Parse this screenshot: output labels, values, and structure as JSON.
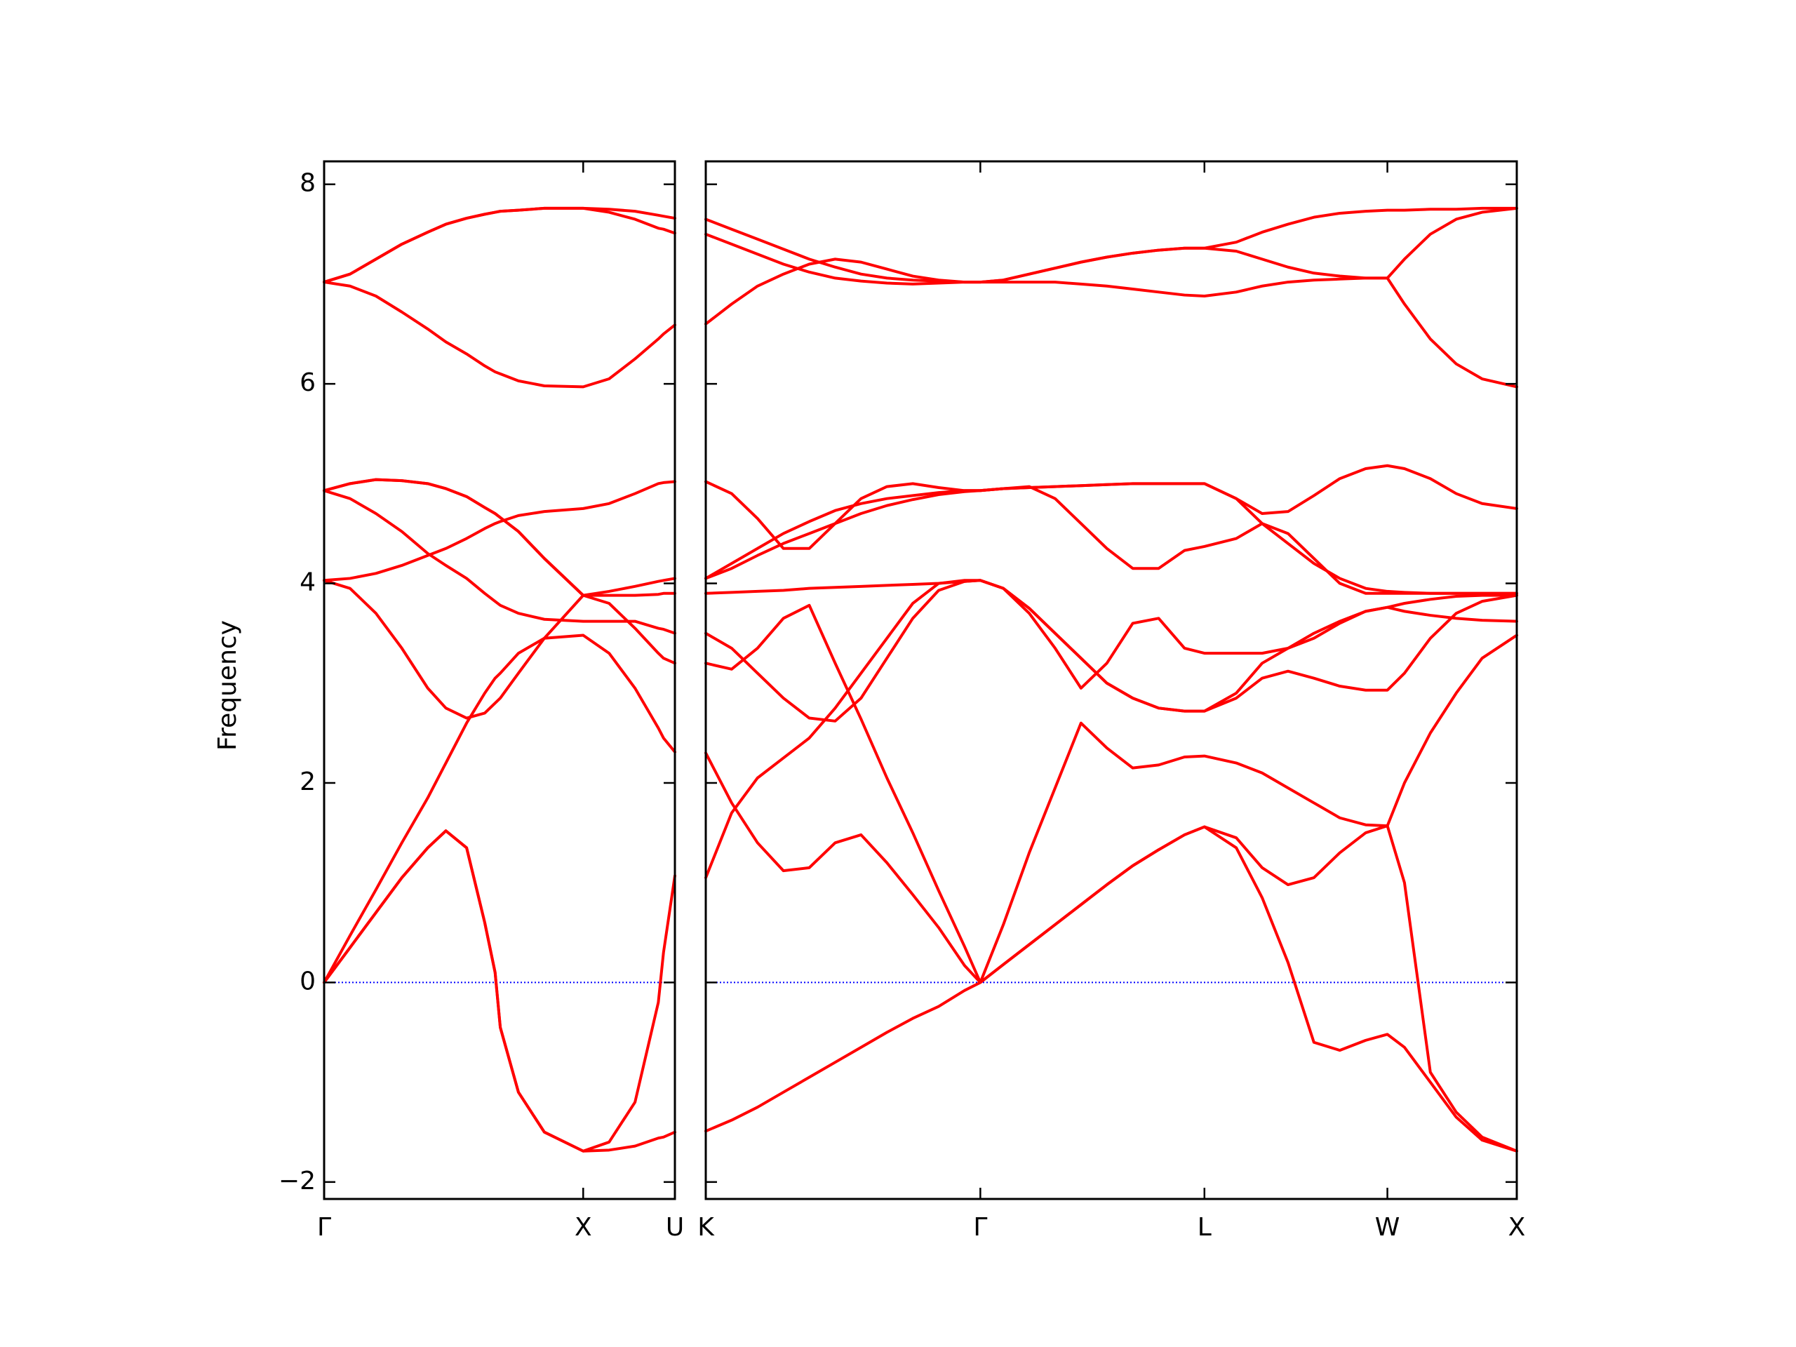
{
  "chart_data": [
    {
      "type": "line",
      "ylabel": "Frequency",
      "x": [
        0,
        0.1,
        0.2,
        0.3,
        0.4,
        0.47,
        0.55,
        0.62,
        0.66,
        0.68,
        0.75,
        0.85,
        1.0,
        1.1,
        1.2,
        1.29,
        1.31,
        1.354
      ],
      "xlim": [
        0,
        1.354
      ],
      "xticks": [
        {
          "value": 0,
          "label": "Γ"
        },
        {
          "value": 1.0,
          "label": "X"
        },
        {
          "value": 1.354,
          "label": "U"
        }
      ],
      "ylim": [
        -2.17,
        8.23
      ],
      "yticks": [
        {
          "value": -2,
          "label": "−2"
        },
        0,
        2,
        4,
        6,
        8
      ],
      "color": "#ff0000",
      "zero_line": {
        "value": 0,
        "color": "#0000ff"
      },
      "series": [
        {
          "values": [
            0,
            0.35,
            0.7,
            1.05,
            1.35,
            1.52,
            1.35,
            0.6,
            0.1,
            -0.45,
            -1.1,
            -1.5,
            -1.69,
            -1.68,
            -1.64,
            -1.56,
            -1.55,
            -1.5
          ]
        },
        {
          "values": [
            0,
            0.35,
            0.7,
            1.05,
            1.35,
            1.52,
            1.35,
            0.6,
            0.1,
            -0.45,
            -1.1,
            -1.5,
            -1.69,
            -1.6,
            -1.2,
            -0.2,
            0.3,
            1.07
          ]
        },
        {
          "values": [
            0,
            0.47,
            0.93,
            1.4,
            1.85,
            2.2,
            2.6,
            2.9,
            3.05,
            3.1,
            3.3,
            3.45,
            3.48,
            3.3,
            2.95,
            2.55,
            2.45,
            2.31
          ]
        },
        {
          "values": [
            4.03,
            3.95,
            3.7,
            3.35,
            2.95,
            2.75,
            2.65,
            2.7,
            2.8,
            2.85,
            3.1,
            3.45,
            3.88,
            3.8,
            3.55,
            3.3,
            3.25,
            3.2
          ]
        },
        {
          "values": [
            4.93,
            4.85,
            4.7,
            4.52,
            4.3,
            4.18,
            4.05,
            3.9,
            3.82,
            3.78,
            3.7,
            3.64,
            3.62,
            3.62,
            3.62,
            3.55,
            3.54,
            3.5
          ]
        },
        {
          "values": [
            4.93,
            5.0,
            5.04,
            5.03,
            5.0,
            4.95,
            4.87,
            4.76,
            4.7,
            4.66,
            4.52,
            4.25,
            3.88,
            3.88,
            3.88,
            3.89,
            3.9,
            3.9
          ]
        },
        {
          "values": [
            4.03,
            4.05,
            4.1,
            4.18,
            4.28,
            4.35,
            4.45,
            4.55,
            4.6,
            4.62,
            4.68,
            4.72,
            4.75,
            4.8,
            4.9,
            5.0,
            5.01,
            5.02
          ]
        },
        {
          "values": [
            4.93,
            5.0,
            5.04,
            5.03,
            5.0,
            4.95,
            4.87,
            4.76,
            4.7,
            4.66,
            4.52,
            4.25,
            3.88,
            3.92,
            3.97,
            4.02,
            4.03,
            4.05
          ]
        },
        {
          "values": [
            7.02,
            6.98,
            6.88,
            6.72,
            6.55,
            6.42,
            6.3,
            6.18,
            6.12,
            6.1,
            6.03,
            5.98,
            5.97,
            6.05,
            6.25,
            6.45,
            6.5,
            6.59
          ]
        },
        {
          "values": [
            7.02,
            7.1,
            7.25,
            7.4,
            7.52,
            7.6,
            7.66,
            7.7,
            7.72,
            7.73,
            7.74,
            7.76,
            7.76,
            7.72,
            7.65,
            7.56,
            7.55,
            7.51
          ]
        },
        {
          "values": [
            7.02,
            7.1,
            7.25,
            7.4,
            7.52,
            7.6,
            7.66,
            7.7,
            7.72,
            7.73,
            7.74,
            7.76,
            7.76,
            7.75,
            7.73,
            7.69,
            7.68,
            7.66
          ]
        }
      ]
    },
    {
      "type": "line",
      "sharey": true,
      "x": [
        0,
        0.1,
        0.2,
        0.3,
        0.4,
        0.5,
        0.6,
        0.7,
        0.8,
        0.9,
        1.0,
        1.061,
        1.15,
        1.25,
        1.35,
        1.45,
        1.55,
        1.65,
        1.75,
        1.85,
        1.927,
        2.05,
        2.15,
        2.25,
        2.35,
        2.45,
        2.55,
        2.634,
        2.7,
        2.8,
        2.9,
        3.0,
        3.134
      ],
      "xlim": [
        0,
        3.134
      ],
      "xticks": [
        {
          "value": 0,
          "label": "K"
        },
        {
          "value": 1.061,
          "label": "Γ"
        },
        {
          "value": 1.927,
          "label": "L"
        },
        {
          "value": 2.634,
          "label": "W"
        },
        {
          "value": 3.134,
          "label": "X"
        }
      ],
      "color": "#ff0000",
      "zero_line": {
        "value": 0,
        "color": "#0000ff"
      },
      "series": [
        {
          "values": [
            -1.49,
            -1.38,
            -1.25,
            -1.1,
            -0.95,
            -0.8,
            -0.65,
            -0.5,
            -0.36,
            -0.24,
            -0.08,
            0,
            0.18,
            0.38,
            0.58,
            0.78,
            0.98,
            1.17,
            1.33,
            1.48,
            1.56,
            1.35,
            0.85,
            0.2,
            -0.6,
            -0.68,
            -0.58,
            -0.52,
            -0.65,
            -1.0,
            -1.35,
            -1.58,
            -1.69
          ]
        },
        {
          "values": [
            1.05,
            1.7,
            2.05,
            2.25,
            2.45,
            2.75,
            3.1,
            3.45,
            3.8,
            4.0,
            4.03,
            4.03,
            3.95,
            3.7,
            3.35,
            2.95,
            3.2,
            3.6,
            3.65,
            3.35,
            3.3,
            3.3,
            3.3,
            3.35,
            3.45,
            3.6,
            3.72,
            3.76,
            3.8,
            3.84,
            3.87,
            3.88,
            3.88
          ]
        },
        {
          "values": [
            2.3,
            1.8,
            1.4,
            1.12,
            1.15,
            1.4,
            1.48,
            1.2,
            0.88,
            0.55,
            0.17,
            0,
            0.58,
            1.3,
            1.95,
            2.6,
            2.35,
            2.15,
            2.18,
            2.26,
            2.27,
            2.2,
            2.1,
            1.95,
            1.8,
            1.65,
            1.58,
            1.57,
            2.0,
            2.5,
            2.9,
            3.25,
            3.48
          ]
        },
        {
          "values": [
            3.5,
            3.35,
            3.1,
            2.85,
            2.65,
            2.62,
            2.85,
            3.25,
            3.65,
            3.93,
            4.02,
            4.03,
            3.95,
            3.75,
            3.5,
            3.25,
            3.0,
            2.85,
            2.75,
            2.72,
            2.72,
            2.85,
            3.05,
            3.12,
            3.05,
            2.97,
            2.93,
            2.93,
            3.1,
            3.45,
            3.7,
            3.82,
            3.88
          ]
        },
        {
          "values": [
            3.2,
            3.14,
            3.35,
            3.65,
            3.78,
            3.2,
            2.64,
            2.05,
            1.5,
            0.92,
            0.36,
            0,
            0.18,
            0.38,
            0.58,
            0.78,
            0.98,
            1.17,
            1.33,
            1.48,
            1.56,
            1.45,
            1.15,
            0.98,
            1.05,
            1.3,
            1.5,
            1.57,
            1.0,
            -0.9,
            -1.3,
            -1.55,
            -1.69
          ]
        },
        {
          "values": [
            3.9,
            3.91,
            3.92,
            3.93,
            3.95,
            3.96,
            3.97,
            3.98,
            3.99,
            4.0,
            4.02,
            4.03,
            3.95,
            3.75,
            3.5,
            3.25,
            3.0,
            2.85,
            2.75,
            2.72,
            2.72,
            2.9,
            3.2,
            3.35,
            3.5,
            3.62,
            3.72,
            3.76,
            3.72,
            3.68,
            3.65,
            3.63,
            3.62
          ]
        },
        {
          "values": [
            4.05,
            4.2,
            4.35,
            4.5,
            4.62,
            4.73,
            4.8,
            4.85,
            4.88,
            4.91,
            4.93,
            4.93,
            4.95,
            4.96,
            4.97,
            4.98,
            4.99,
            5.0,
            5.0,
            5.0,
            5.0,
            4.85,
            4.6,
            4.4,
            4.2,
            4.05,
            3.95,
            3.92,
            3.91,
            3.9,
            3.9,
            3.9,
            3.9
          ]
        },
        {
          "values": [
            5.02,
            4.9,
            4.65,
            4.35,
            4.35,
            4.6,
            4.85,
            4.97,
            5.0,
            4.96,
            4.93,
            4.93,
            4.95,
            4.97,
            4.85,
            4.6,
            4.35,
            4.15,
            4.15,
            4.33,
            4.37,
            4.45,
            4.6,
            4.5,
            4.25,
            4.0,
            3.9,
            3.9,
            3.9,
            3.9,
            3.9,
            3.9,
            3.9
          ]
        },
        {
          "values": [
            4.05,
            4.15,
            4.28,
            4.4,
            4.5,
            4.6,
            4.7,
            4.78,
            4.84,
            4.89,
            4.92,
            4.93,
            4.95,
            4.96,
            4.97,
            4.98,
            4.99,
            5.0,
            5.0,
            5.0,
            5.0,
            4.85,
            4.7,
            4.72,
            4.88,
            5.05,
            5.15,
            5.18,
            5.15,
            5.05,
            4.9,
            4.8,
            4.75
          ]
        },
        {
          "values": [
            6.6,
            6.8,
            6.98,
            7.1,
            7.2,
            7.25,
            7.22,
            7.15,
            7.08,
            7.04,
            7.02,
            7.02,
            7.04,
            7.1,
            7.16,
            7.22,
            7.27,
            7.31,
            7.34,
            7.36,
            7.36,
            7.33,
            7.25,
            7.17,
            7.11,
            7.08,
            7.06,
            7.06,
            7.25,
            7.5,
            7.65,
            7.72,
            7.76
          ]
        },
        {
          "values": [
            7.5,
            7.4,
            7.3,
            7.2,
            7.12,
            7.06,
            7.03,
            7.01,
            7.0,
            7.01,
            7.02,
            7.02,
            7.02,
            7.02,
            7.02,
            7.0,
            6.98,
            6.95,
            6.92,
            6.89,
            6.88,
            6.92,
            6.98,
            7.02,
            7.04,
            7.05,
            7.06,
            7.06,
            6.8,
            6.45,
            6.2,
            6.05,
            5.97
          ]
        },
        {
          "values": [
            7.65,
            7.55,
            7.45,
            7.35,
            7.25,
            7.17,
            7.1,
            7.06,
            7.04,
            7.03,
            7.02,
            7.02,
            7.04,
            7.1,
            7.16,
            7.22,
            7.27,
            7.31,
            7.34,
            7.36,
            7.36,
            7.42,
            7.52,
            7.6,
            7.67,
            7.71,
            7.73,
            7.74,
            7.74,
            7.75,
            7.75,
            7.76,
            7.76
          ]
        }
      ]
    }
  ]
}
